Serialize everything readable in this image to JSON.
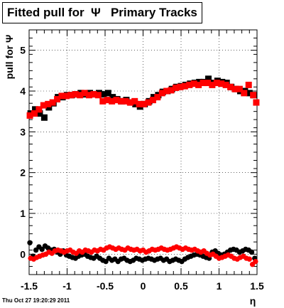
{
  "chart_data": {
    "type": "scatter",
    "title": "Fitted pull for  Ψ   Primary Tracks",
    "xlabel": "η",
    "ylabel": "pull for Ψ",
    "xlim": [
      -1.5,
      1.5
    ],
    "ylim": [
      -0.5,
      5.5
    ],
    "x_ticks": [
      "-1.5",
      "-1",
      "-0.5",
      "0",
      "0.5",
      "1",
      "1.5"
    ],
    "x_tick_values": [
      -1.5,
      -1,
      -0.5,
      0,
      0.5,
      1,
      1.5
    ],
    "y_ticks": [
      "0",
      "1",
      "2",
      "3",
      "4",
      "5"
    ],
    "y_tick_values": [
      0,
      1,
      2,
      3,
      4,
      5
    ],
    "grid": true,
    "legend": "none",
    "series": [
      {
        "color": "#000000",
        "marker": "square",
        "x": [
          -1.48,
          -1.42,
          -1.36,
          -1.3,
          -1.24,
          -1.18,
          -1.12,
          -1.06,
          -1.0,
          -0.94,
          -0.88,
          -0.82,
          -0.76,
          -0.7,
          -0.64,
          -0.58,
          -0.52,
          -0.46,
          -0.4,
          -0.34,
          -0.28,
          -0.22,
          -0.16,
          -0.1,
          -0.04,
          0.02,
          0.08,
          0.14,
          0.2,
          0.26,
          0.32,
          0.38,
          0.44,
          0.5,
          0.56,
          0.62,
          0.68,
          0.74,
          0.8,
          0.86,
          0.92,
          0.98,
          1.04,
          1.1,
          1.16,
          1.22,
          1.28,
          1.34,
          1.4,
          1.46
        ],
        "y": [
          3.45,
          3.55,
          3.45,
          3.35,
          3.6,
          3.7,
          3.85,
          3.85,
          3.9,
          3.9,
          3.92,
          3.95,
          3.92,
          3.95,
          3.92,
          3.95,
          3.92,
          3.95,
          3.85,
          3.8,
          3.75,
          3.78,
          3.72,
          3.68,
          3.62,
          3.68,
          3.75,
          3.85,
          3.9,
          3.98,
          4.0,
          4.05,
          4.1,
          4.12,
          4.15,
          4.18,
          4.2,
          4.22,
          4.22,
          4.3,
          4.2,
          4.25,
          4.22,
          4.2,
          4.1,
          4.05,
          4.0,
          4.0,
          3.95,
          3.9
        ]
      },
      {
        "color": "#ff0000",
        "marker": "square",
        "x": [
          -1.49,
          -1.43,
          -1.37,
          -1.31,
          -1.25,
          -1.19,
          -1.13,
          -1.07,
          -1.01,
          -0.95,
          -0.89,
          -0.83,
          -0.77,
          -0.71,
          -0.65,
          -0.59,
          -0.53,
          -0.47,
          -0.41,
          -0.35,
          -0.29,
          -0.23,
          -0.17,
          -0.11,
          -0.05,
          0.01,
          0.07,
          0.13,
          0.19,
          0.25,
          0.31,
          0.37,
          0.43,
          0.49,
          0.55,
          0.61,
          0.67,
          0.73,
          0.79,
          0.85,
          0.91,
          0.97,
          1.03,
          1.09,
          1.15,
          1.21,
          1.27,
          1.33,
          1.39,
          1.45,
          1.49
        ],
        "y": [
          3.4,
          3.45,
          3.55,
          3.65,
          3.68,
          3.72,
          3.8,
          3.88,
          3.88,
          3.9,
          3.92,
          3.9,
          3.95,
          3.9,
          3.92,
          3.9,
          3.75,
          3.78,
          3.75,
          3.78,
          3.75,
          3.75,
          3.72,
          3.75,
          3.68,
          3.68,
          3.72,
          3.78,
          3.85,
          3.95,
          4.0,
          4.02,
          4.08,
          4.1,
          4.12,
          4.15,
          4.18,
          4.15,
          4.2,
          4.2,
          4.15,
          4.2,
          4.18,
          4.15,
          4.1,
          4.05,
          4.05,
          3.95,
          4.15,
          3.9,
          3.72
        ]
      },
      {
        "color": "#000000",
        "marker": "circle",
        "x": [
          -1.49,
          -1.45,
          -1.41,
          -1.37,
          -1.33,
          -1.29,
          -1.25,
          -1.21,
          -1.17,
          -1.13,
          -1.09,
          -1.05,
          -1.01,
          -0.97,
          -0.93,
          -0.89,
          -0.85,
          -0.81,
          -0.77,
          -0.73,
          -0.69,
          -0.65,
          -0.61,
          -0.57,
          -0.53,
          -0.49,
          -0.45,
          -0.41,
          -0.37,
          -0.33,
          -0.29,
          -0.25,
          -0.21,
          -0.17,
          -0.13,
          -0.09,
          -0.05,
          -0.01,
          0.03,
          0.07,
          0.11,
          0.15,
          0.19,
          0.23,
          0.27,
          0.31,
          0.35,
          0.39,
          0.43,
          0.47,
          0.51,
          0.55,
          0.59,
          0.63,
          0.67,
          0.71,
          0.75,
          0.79,
          0.83,
          0.87,
          0.91,
          0.95,
          0.99,
          1.03,
          1.07,
          1.11,
          1.15,
          1.19,
          1.23,
          1.27,
          1.31,
          1.35,
          1.39,
          1.43,
          1.47
        ],
        "y": [
          0.28,
          -0.05,
          0.1,
          0.18,
          0.12,
          0.2,
          0.15,
          0.1,
          0.12,
          0.05,
          0.0,
          0.08,
          -0.02,
          -0.05,
          -0.08,
          -0.1,
          -0.05,
          -0.02,
          0.0,
          -0.05,
          -0.08,
          -0.1,
          -0.05,
          -0.1,
          -0.15,
          -0.18,
          -0.1,
          -0.15,
          -0.12,
          -0.18,
          -0.12,
          -0.1,
          -0.15,
          -0.18,
          -0.15,
          -0.1,
          -0.12,
          -0.15,
          -0.12,
          -0.1,
          -0.12,
          -0.15,
          -0.12,
          -0.1,
          -0.15,
          -0.12,
          -0.18,
          -0.15,
          -0.12,
          -0.15,
          -0.18,
          -0.12,
          -0.08,
          -0.05,
          -0.02,
          0.0,
          -0.02,
          -0.05,
          -0.08,
          -0.1,
          0.05,
          0.08,
          0.02,
          -0.02,
          0.0,
          0.05,
          0.1,
          0.12,
          0.1,
          0.05,
          0.08,
          0.12,
          0.1,
          0.05,
          -0.1
        ]
      },
      {
        "color": "#ff0000",
        "marker": "circle",
        "x": [
          -1.48,
          -1.44,
          -1.4,
          -1.36,
          -1.32,
          -1.28,
          -1.24,
          -1.2,
          -1.16,
          -1.12,
          -1.08,
          -1.04,
          -1.0,
          -0.96,
          -0.92,
          -0.88,
          -0.84,
          -0.8,
          -0.76,
          -0.72,
          -0.68,
          -0.64,
          -0.6,
          -0.56,
          -0.52,
          -0.48,
          -0.44,
          -0.4,
          -0.36,
          -0.32,
          -0.28,
          -0.24,
          -0.2,
          -0.16,
          -0.12,
          -0.08,
          -0.04,
          0.0,
          0.04,
          0.08,
          0.12,
          0.16,
          0.2,
          0.24,
          0.28,
          0.32,
          0.36,
          0.4,
          0.44,
          0.48,
          0.52,
          0.56,
          0.6,
          0.64,
          0.68,
          0.72,
          0.76,
          0.8,
          0.84,
          0.88,
          0.92,
          0.96,
          1.0,
          1.04,
          1.08,
          1.12,
          1.16,
          1.2,
          1.24,
          1.28,
          1.32,
          1.36,
          1.4,
          1.44,
          1.48
        ],
        "y": [
          -0.1,
          -0.12,
          -0.08,
          -0.05,
          -0.02,
          0.0,
          0.05,
          0.02,
          0.08,
          0.1,
          0.08,
          0.05,
          0.08,
          0.1,
          0.05,
          0.02,
          0.08,
          0.05,
          0.1,
          0.08,
          0.05,
          0.1,
          0.08,
          0.12,
          0.1,
          0.15,
          0.18,
          0.15,
          0.12,
          0.15,
          0.12,
          0.1,
          0.15,
          0.12,
          0.1,
          0.12,
          0.08,
          0.1,
          0.05,
          0.08,
          0.12,
          0.1,
          0.12,
          0.15,
          0.12,
          0.1,
          0.12,
          0.15,
          0.18,
          0.15,
          0.12,
          0.15,
          0.12,
          0.1,
          0.12,
          0.08,
          0.05,
          0.08,
          0.02,
          -0.02,
          0.0,
          -0.05,
          -0.1,
          -0.08,
          -0.05,
          -0.02,
          -0.05,
          -0.1,
          -0.12,
          -0.08,
          -0.05,
          -0.1,
          -0.12,
          -0.25,
          -0.18
        ]
      }
    ]
  },
  "timestamp": "Thu Oct 27 19:20:29 2011"
}
